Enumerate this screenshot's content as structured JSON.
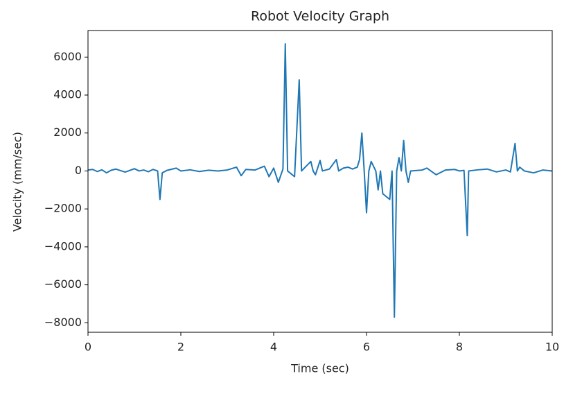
{
  "chart_data": {
    "type": "line",
    "title": "Robot Velocity Graph",
    "x_label": "Time (sec)",
    "y_label": "Velocity (mm/sec)",
    "xlim": [
      0,
      10
    ],
    "xticks": [
      0,
      2,
      4,
      6,
      8,
      10
    ],
    "ylim": [
      -8500,
      7400
    ],
    "yticks": [
      {
        "value": -8000,
        "label": "−8000"
      },
      {
        "value": -6000,
        "label": "−6000"
      },
      {
        "value": -4000,
        "label": "−4000"
      },
      {
        "value": -2000,
        "label": "−2000"
      },
      0,
      2000,
      4000,
      6000
    ],
    "grid": false,
    "x": [
      0,
      0.1,
      0.2,
      0.3,
      0.4,
      0.5,
      0.6,
      0.7,
      0.8,
      0.9,
      1.0,
      1.1,
      1.2,
      1.3,
      1.4,
      1.5,
      1.55,
      1.6,
      1.7,
      1.9,
      2.0,
      2.2,
      2.4,
      2.6,
      2.8,
      3.0,
      3.2,
      3.3,
      3.4,
      3.6,
      3.8,
      3.9,
      4.0,
      4.1,
      4.2,
      4.25,
      4.3,
      4.45,
      4.55,
      4.6,
      4.8,
      4.85,
      4.9,
      5.0,
      5.05,
      5.2,
      5.35,
      5.4,
      5.5,
      5.6,
      5.7,
      5.8,
      5.85,
      5.9,
      5.95,
      6.0,
      6.05,
      6.1,
      6.2,
      6.25,
      6.3,
      6.35,
      6.4,
      6.45,
      6.5,
      6.55,
      6.6,
      6.65,
      6.7,
      6.75,
      6.8,
      6.85,
      6.9,
      6.95,
      7.2,
      7.3,
      7.5,
      7.7,
      7.9,
      8.0,
      8.1,
      8.17,
      8.2,
      8.4,
      8.6,
      8.8,
      9.0,
      9.1,
      9.2,
      9.25,
      9.3,
      9.4,
      9.6,
      9.8,
      10.0
    ],
    "series": [
      {
        "name": "velocity",
        "color": "#1f77b4",
        "values": [
          50,
          80,
          -30,
          60,
          -100,
          40,
          100,
          20,
          -60,
          30,
          120,
          0,
          50,
          -40,
          80,
          0,
          -1500,
          -100,
          30,
          150,
          0,
          60,
          -30,
          40,
          0,
          50,
          200,
          -250,
          80,
          50,
          250,
          -300,
          150,
          -600,
          100,
          6700,
          0,
          -300,
          4800,
          0,
          500,
          0,
          -200,
          550,
          0,
          100,
          600,
          0,
          150,
          200,
          100,
          200,
          600,
          2000,
          0,
          -2200,
          0,
          500,
          0,
          -1000,
          0,
          -1200,
          -1300,
          -1400,
          -1500,
          0,
          -7700,
          0,
          700,
          0,
          1600,
          0,
          -600,
          0,
          50,
          150,
          -200,
          50,
          80,
          0,
          30,
          -3400,
          0,
          60,
          100,
          -50,
          50,
          -50,
          1450,
          0,
          200,
          0,
          -100,
          50,
          0
        ]
      }
    ]
  }
}
